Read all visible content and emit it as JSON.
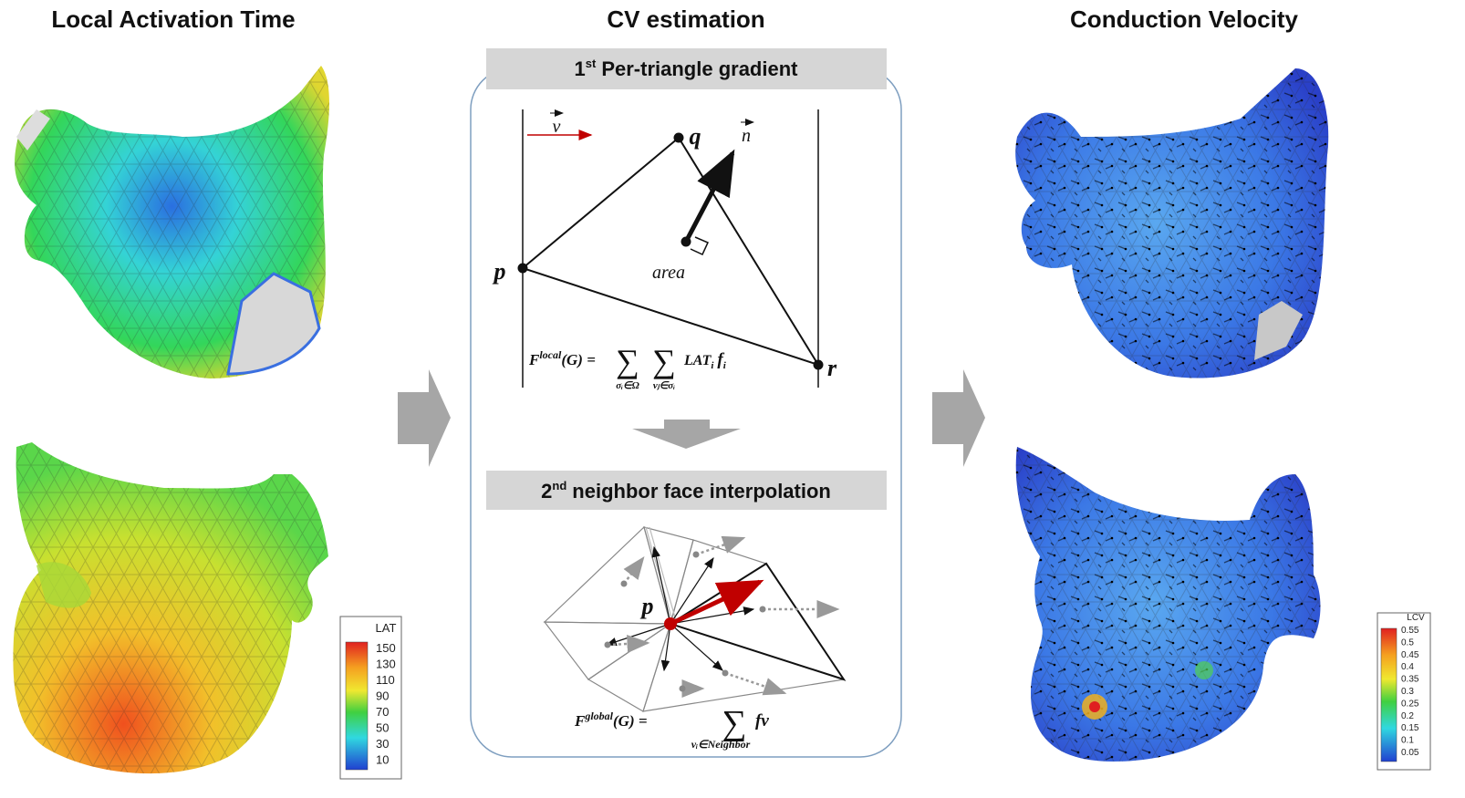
{
  "titles": {
    "left": "Local Activation Time",
    "middle": "CV estimation",
    "right": "Conduction Velocity"
  },
  "step1": {
    "ordinal": "1",
    "suffix": "st",
    "label": "Per-triangle gradient"
  },
  "step2": {
    "ordinal": "2",
    "suffix": "nd",
    "label": "neighbor face interpolation"
  },
  "diagram1": {
    "vector_v": "v",
    "vector_n": "n",
    "vertex_p": "p",
    "vertex_q": "q",
    "vertex_r": "r",
    "area": "area",
    "formula": {
      "symbol": "F",
      "superscript": "local",
      "argument": "(G) = ",
      "sum_sign": "∑",
      "sum1_sub": "σᵢ∈Ω",
      "sum2_sub": "vⱼ∈σᵢ",
      "term": "LAT",
      "term_sub": "i",
      "factor": "f",
      "factor_sub": "i"
    }
  },
  "diagram2": {
    "vertex_p": "p",
    "formula": {
      "symbol": "F",
      "superscript": "global",
      "argument": "(G) = ",
      "sum_sign": "∑",
      "sum_sub": "vᵢ∈Neighbor",
      "term": "fv"
    }
  },
  "legend_lat": {
    "title": "LAT",
    "ticks": [
      150,
      130,
      110,
      90,
      70,
      50,
      30,
      10
    ]
  },
  "legend_lcv": {
    "title": "LCV",
    "ticks": [
      0.55,
      0.5,
      0.45,
      0.4,
      0.35,
      0.3,
      0.25,
      0.2,
      0.15,
      0.1,
      0.05
    ]
  }
}
